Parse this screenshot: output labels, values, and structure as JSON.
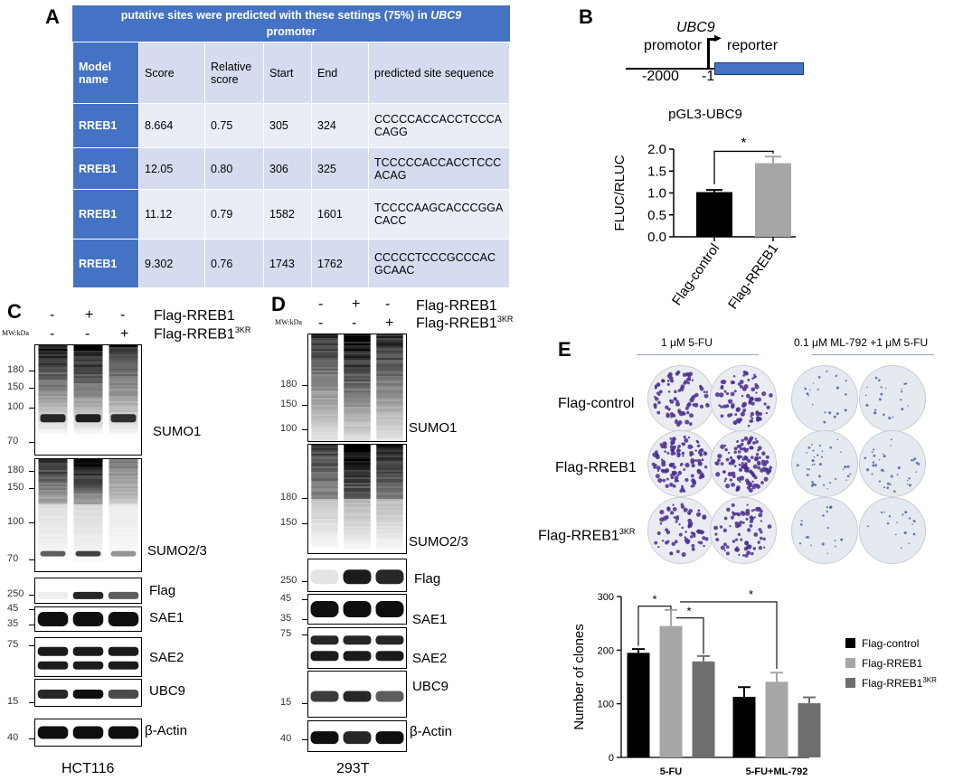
{
  "panels": {
    "A": "A",
    "B": "B",
    "C": "C",
    "D": "D",
    "E": "E"
  },
  "tableA": {
    "title_pre": "putative sites were predicted with these settings (75%) in ",
    "title_gene": "UBC9",
    "title_post": " promoter",
    "headers": [
      "Model name",
      "Score",
      "Relative score",
      "Start",
      "End",
      "predicted site sequence"
    ],
    "rows": [
      [
        "RREB1",
        "8.664",
        "0.75",
        "305",
        "324",
        "CCCCCACCACCTCCCACAGG"
      ],
      [
        "RREB1",
        "12.05",
        "0.80",
        "306",
        "325",
        "TCCCCCACCACCTCCCACAG"
      ],
      [
        "RREB1",
        "11.12",
        "0.79",
        "1582",
        "1601",
        "TCCCCAAGCACCCGGACACC"
      ],
      [
        "RREB1",
        "9.302",
        "0.76",
        "1743",
        "1762",
        "CCCCCTCCCGCCCACGCAAC"
      ]
    ]
  },
  "panelB": {
    "schematic": {
      "gene": "UBC9",
      "promotor": "promotor",
      "reporter": "reporter",
      "pos1": "-2000",
      "pos2": "-1"
    },
    "title": "pGL3-UBC9",
    "ylabel": "FLUC/RLUC",
    "sig": "*",
    "colors": {
      "control": "#000000",
      "rreb1": "#A6A6A6"
    }
  },
  "chart_data": [
    {
      "type": "bar",
      "title": "pGL3-UBC9",
      "xlabel": "",
      "ylabel": "FLUC/RLUC",
      "categories": [
        "Flag-control",
        "Flag-RREB1"
      ],
      "values": [
        1.02,
        1.68
      ],
      "errors": [
        0.05,
        0.15
      ],
      "ylim": [
        0,
        2.0
      ],
      "yticks": [
        "0.0",
        "0.5",
        "1.0",
        "1.5",
        "2.0"
      ]
    },
    {
      "type": "bar",
      "title": "",
      "xlabel": "",
      "ylabel": "Number of clones",
      "categories": [
        "5-FU",
        "5-FU+ML-792"
      ],
      "series": [
        {
          "name": "Flag-control",
          "values": [
            195,
            113
          ],
          "errors": [
            7,
            18
          ],
          "color": "#000000"
        },
        {
          "name": "Flag-RREB1",
          "values": [
            245,
            141
          ],
          "errors": [
            30,
            17
          ],
          "color": "#A6A6A6"
        },
        {
          "name": "Flag-RREB1",
          "name_sup": "3KR",
          "values": [
            179,
            101
          ],
          "errors": [
            10,
            11
          ],
          "color": "#6E6E6E"
        }
      ],
      "ylim": [
        0,
        300
      ],
      "yticks": [
        "0",
        "100",
        "200",
        "300"
      ],
      "sig": [
        "*",
        "*",
        "*"
      ]
    }
  ],
  "panelC": {
    "treat_labels": [
      "Flag-RREB1",
      "Flag-RREB1"
    ],
    "treat_sup": "3KR",
    "row1": [
      "-",
      "+",
      "-"
    ],
    "row2": [
      "-",
      "-",
      "+"
    ],
    "mw": "MW:kDa",
    "cell_line": "HCT116",
    "blots": [
      "SUMO1",
      "SUMO2/3",
      "Flag",
      "SAE1",
      "SAE2",
      "UBC9",
      "β-Actin"
    ],
    "mw_sumo1": [
      "180",
      "150",
      "100",
      "70"
    ],
    "mw_sumo23": [
      "180",
      "150",
      "100",
      "70"
    ],
    "mw_flag": [
      "250"
    ],
    "mw_sae1": [
      "45",
      "35"
    ],
    "mw_sae2": [
      "75"
    ],
    "mw_ubc9": [
      "15"
    ],
    "mw_actin": [
      "40"
    ]
  },
  "panelD": {
    "treat_labels": [
      "Flag-RREB1",
      "Flag-RREB1"
    ],
    "treat_sup": "3KR",
    "row1": [
      "-",
      "+",
      "-"
    ],
    "row2": [
      "-",
      "-",
      "+"
    ],
    "mw": "MW:kDa",
    "cell_line": "293T",
    "blots": [
      "SUMO1",
      "SUMO2/3",
      "Flag",
      "SAE1",
      "SAE2",
      "UBC9",
      "β-Actin"
    ],
    "mw_sumo1": [
      "180",
      "150",
      "100"
    ],
    "mw_sumo23": [
      "180",
      "150"
    ],
    "mw_flag": [
      "250"
    ],
    "mw_sae1": [
      "45",
      "35"
    ],
    "mw_sae2": [
      "75"
    ],
    "mw_ubc9": [
      "15"
    ],
    "mw_actin": [
      "40"
    ]
  },
  "panelE": {
    "cond1": "1 μM 5-FU",
    "cond2": "0.1 μM ML-792 +1 μM 5-FU",
    "rows": [
      "Flag-control",
      "Flag-RREB1",
      "Flag-RREB1"
    ],
    "row_sup": "3KR"
  }
}
